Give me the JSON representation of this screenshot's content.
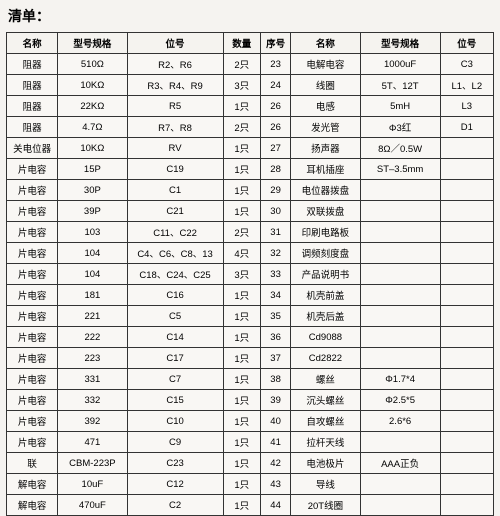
{
  "title": "清单：",
  "headers": [
    "名称",
    "型号规格",
    "位号",
    "数量",
    "序号",
    "名称",
    "型号规格",
    "位号"
  ],
  "rows": [
    [
      "阻器",
      "510Ω",
      "R2、R6",
      "2只",
      "23",
      "电解电容",
      "1000uF",
      "C3"
    ],
    [
      "阻器",
      "10KΩ",
      "R3、R4、R9",
      "3只",
      "24",
      "线圈",
      "5T、12T",
      "L1、L2"
    ],
    [
      "阻器",
      "22KΩ",
      "R5",
      "1只",
      "26",
      "电感",
      "5mH",
      "L3"
    ],
    [
      "阻器",
      "4.7Ω",
      "R7、R8",
      "2只",
      "26",
      "发光管",
      "Φ3红",
      "D1"
    ],
    [
      "关电位器",
      "10KΩ",
      "RV",
      "1只",
      "27",
      "扬声器",
      "8Ω／0.5W",
      ""
    ],
    [
      "片电容",
      "15P",
      "C19",
      "1只",
      "28",
      "耳机插座",
      "ST–3.5mm",
      ""
    ],
    [
      "片电容",
      "30P",
      "C1",
      "1只",
      "29",
      "电位器拨盘",
      "",
      ""
    ],
    [
      "片电容",
      "39P",
      "C21",
      "1只",
      "30",
      "双联拨盘",
      "",
      ""
    ],
    [
      "片电容",
      "103",
      "C11、C22",
      "2只",
      "31",
      "印刷电路板",
      "",
      ""
    ],
    [
      "片电容",
      "104",
      "C4、C6、C8、13",
      "4只",
      "32",
      "调频刻度盘",
      "",
      ""
    ],
    [
      "片电容",
      "104",
      "C18、C24、C25",
      "3只",
      "33",
      "产品说明书",
      "",
      ""
    ],
    [
      "片电容",
      "181",
      "C16",
      "1只",
      "34",
      "机壳前盖",
      "",
      ""
    ],
    [
      "片电容",
      "221",
      "C5",
      "1只",
      "35",
      "机壳后盖",
      "",
      ""
    ],
    [
      "片电容",
      "222",
      "C14",
      "1只",
      "36",
      "Cd9088",
      "",
      ""
    ],
    [
      "片电容",
      "223",
      "C17",
      "1只",
      "37",
      "Cd2822",
      "",
      ""
    ],
    [
      "片电容",
      "331",
      "C7",
      "1只",
      "38",
      "螺丝",
      "Φ1.7*4",
      ""
    ],
    [
      "片电容",
      "332",
      "C15",
      "1只",
      "39",
      "沉头螺丝",
      "Φ2.5*5",
      ""
    ],
    [
      "片电容",
      "392",
      "C10",
      "1只",
      "40",
      "自攻螺丝",
      "2.6*6",
      ""
    ],
    [
      "片电容",
      "471",
      "C9",
      "1只",
      "41",
      "拉杆天线",
      "",
      ""
    ],
    [
      "联",
      "CBM-223P",
      "C23",
      "1只",
      "42",
      "电池极片",
      "AAA正负",
      ""
    ],
    [
      "解电容",
      "10uF",
      "C12",
      "1只",
      "43",
      "导线",
      "",
      ""
    ],
    [
      "解电容",
      "470uF",
      "C2",
      "1只",
      "44",
      "20T线圈",
      "",
      ""
    ]
  ]
}
